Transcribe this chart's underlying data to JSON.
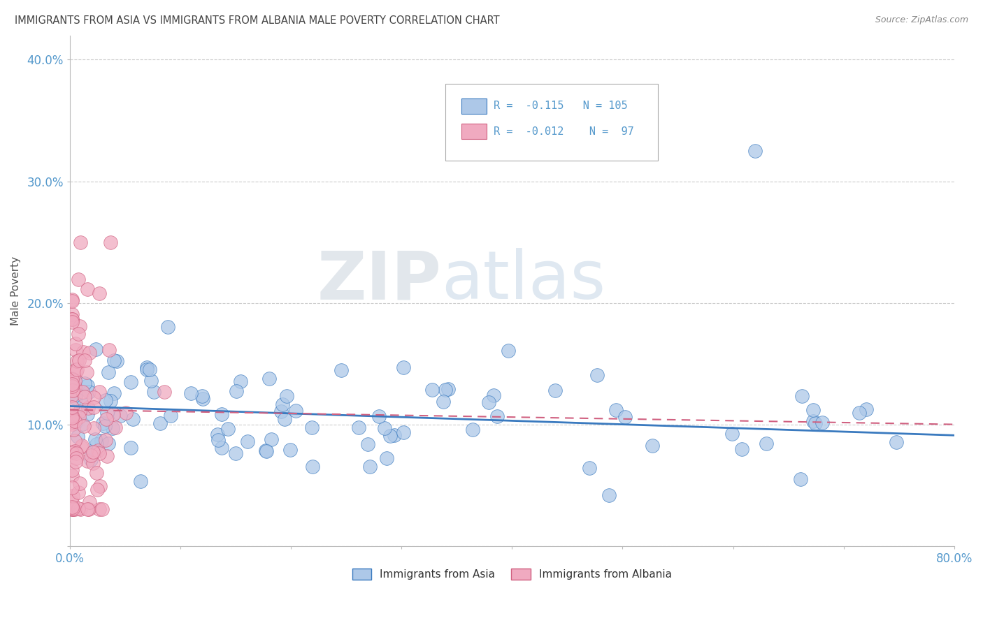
{
  "title": "IMMIGRANTS FROM ASIA VS IMMIGRANTS FROM ALBANIA MALE POVERTY CORRELATION CHART",
  "source": "Source: ZipAtlas.com",
  "ylabel": "Male Poverty",
  "watermark_zip": "ZIP",
  "watermark_atlas": "atlas",
  "xlim": [
    0.0,
    0.8
  ],
  "ylim": [
    0.0,
    0.42
  ],
  "legend1_r": "-0.115",
  "legend1_n": "105",
  "legend2_r": "-0.012",
  "legend2_n": "97",
  "color_asia": "#adc8e8",
  "color_albania": "#f0aac0",
  "line_color_asia": "#3a7abf",
  "line_color_albania": "#d06080",
  "grid_color": "#cccccc",
  "tick_color": "#5599cc",
  "title_color": "#444444",
  "source_color": "#888888"
}
